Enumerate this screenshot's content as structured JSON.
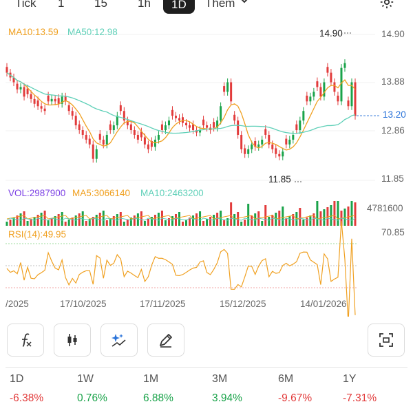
{
  "intervals": [
    "Tick",
    "1",
    "15",
    "1h",
    "1D",
    "Them"
  ],
  "active_interval": "1D",
  "ma": {
    "ma10": "MA10:13.59",
    "ma50": "MA50:12.98"
  },
  "price_axis": [
    "14.90",
    "13.88",
    "12.86",
    "11.85"
  ],
  "last_price": "13.20",
  "max_label": "14.90",
  "min_label": "11.85",
  "vol": {
    "vol": "VOL:2987900",
    "ma5": "MA5:3066140",
    "ma10": "MA10:2463200",
    "axis": "4781600"
  },
  "rsi": {
    "label": "RSI(14):49.95",
    "axis": "70.85"
  },
  "dates": [
    "/2025",
    "17/10/2025",
    "17/11/2025",
    "15/12/2025",
    "14/01/2026"
  ],
  "colors": {
    "up": "#1aa34a",
    "down": "#e23b3b",
    "ma10": "#f0a020",
    "ma50": "#5fd0b8",
    "vol": "#7b3fe4",
    "rsi": "#f0a020"
  },
  "icons": [
    "fx-icon",
    "candlestick-icon",
    "sparkle-chart-icon",
    "pencil-icon",
    "fullscreen-icon"
  ],
  "periods": [
    {
      "name": "1D",
      "value": "-6.38%",
      "dir": "down"
    },
    {
      "name": "1W",
      "value": "0.76%",
      "dir": "up"
    },
    {
      "name": "1M",
      "value": "6.88%",
      "dir": "up"
    },
    {
      "name": "3M",
      "value": "3.94%",
      "dir": "up"
    },
    {
      "name": "6M",
      "value": "-9.67%",
      "dir": "down"
    },
    {
      "name": "1Y",
      "value": "-7.31%",
      "dir": "down"
    }
  ]
}
